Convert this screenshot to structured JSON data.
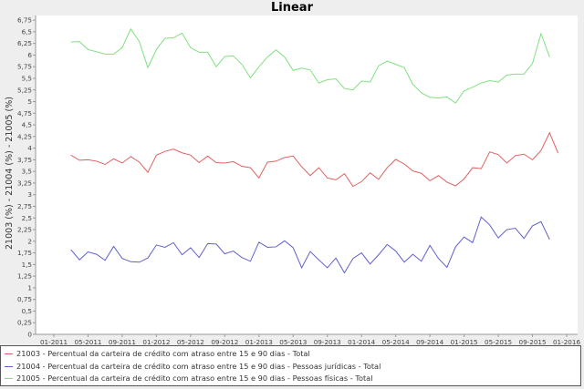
{
  "chart_data": {
    "type": "line",
    "title": "Linear",
    "xlabel": "",
    "ylabel": "21003 (%) - 21004 (%) - 21005 (%)",
    "ylim": [
      0,
      6.85
    ],
    "y_ticks": [
      "0",
      "0,25",
      "0,5",
      "0,75",
      "1",
      "1,25",
      "1,5",
      "1,75",
      "2",
      "2,25",
      "2,5",
      "2,75",
      "3",
      "3,25",
      "3,5",
      "3,75",
      "4",
      "4,25",
      "4,5",
      "4,75",
      "5",
      "5,25",
      "5,5",
      "5,75",
      "6",
      "6,25",
      "6,5",
      "6,75"
    ],
    "x_ticks": [
      "01-2011",
      "05-2011",
      "09-2011",
      "01-2012",
      "05-2012",
      "09-2012",
      "01-2013",
      "05-2013",
      "09-2013",
      "01-2014",
      "05-2014",
      "09-2014",
      "01-2015",
      "05-2015",
      "09-2015",
      "01-2016"
    ],
    "x_start": "2011-01",
    "x_end": "2016-01",
    "grid": false,
    "legend_position": "bottom",
    "series": [
      {
        "name": "21003 - Percentual da carteira de crédito com atraso entre 15 e 90 dias - Total",
        "color": "#e06060",
        "start": "2011-03",
        "values": [
          3.85,
          3.74,
          3.75,
          3.72,
          3.65,
          3.77,
          3.68,
          3.82,
          3.7,
          3.48,
          3.85,
          3.93,
          3.98,
          3.9,
          3.85,
          3.69,
          3.83,
          3.69,
          3.68,
          3.71,
          3.61,
          3.58,
          3.36,
          3.7,
          3.72,
          3.8,
          3.83,
          3.6,
          3.41,
          3.58,
          3.36,
          3.32,
          3.45,
          3.18,
          3.28,
          3.47,
          3.33,
          3.58,
          3.76,
          3.66,
          3.51,
          3.46,
          3.3,
          3.41,
          3.27,
          3.19,
          3.34,
          3.58,
          3.56,
          3.92,
          3.86,
          3.68,
          3.84,
          3.87,
          3.75,
          3.95,
          4.33,
          3.89
        ]
      },
      {
        "name": "21004 - Percentual da carteira de crédito com atraso entre 15 e 90 dias - Pessoas jurídicas - Total",
        "color": "#6060d0",
        "start": "2011-03",
        "values": [
          1.82,
          1.6,
          1.77,
          1.72,
          1.59,
          1.89,
          1.63,
          1.56,
          1.55,
          1.64,
          1.92,
          1.87,
          1.97,
          1.71,
          1.86,
          1.65,
          1.95,
          1.94,
          1.73,
          1.79,
          1.65,
          1.57,
          1.98,
          1.87,
          1.88,
          2.01,
          1.86,
          1.43,
          1.78,
          1.6,
          1.43,
          1.64,
          1.32,
          1.63,
          1.75,
          1.51,
          1.71,
          1.93,
          1.79,
          1.55,
          1.72,
          1.57,
          1.91,
          1.63,
          1.44,
          1.88,
          2.09,
          1.97,
          2.52,
          2.35,
          2.07,
          2.25,
          2.28,
          2.06,
          2.33,
          2.42,
          2.04
        ]
      },
      {
        "name": "21005 - Percentual da carteira de crédito com atraso entre 15 e 90 dias - Pessoas físicas - Total",
        "color": "#80e080",
        "start": "2011-03",
        "values": [
          6.28,
          6.29,
          6.12,
          6.07,
          6.02,
          6.02,
          6.16,
          6.56,
          6.29,
          5.73,
          6.12,
          6.36,
          6.37,
          6.47,
          6.16,
          6.06,
          6.06,
          5.75,
          5.97,
          5.98,
          5.8,
          5.51,
          5.75,
          5.96,
          6.11,
          5.96,
          5.67,
          5.72,
          5.68,
          5.4,
          5.47,
          5.49,
          5.28,
          5.25,
          5.44,
          5.42,
          5.77,
          5.87,
          5.8,
          5.73,
          5.37,
          5.19,
          5.09,
          5.08,
          5.1,
          4.97,
          5.23,
          5.31,
          5.4,
          5.45,
          5.42,
          5.57,
          5.59,
          5.59,
          5.82,
          6.46,
          5.96
        ]
      }
    ]
  }
}
